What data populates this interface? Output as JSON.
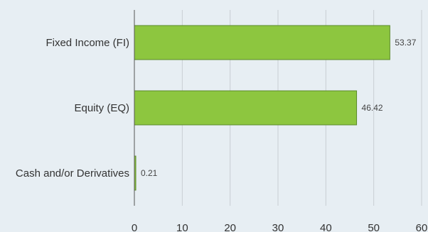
{
  "chart_data": {
    "type": "bar",
    "orientation": "horizontal",
    "categories": [
      "Fixed Income (FI)",
      "Equity (EQ)",
      "Cash and/or Derivatives"
    ],
    "values": [
      53.37,
      46.42,
      0.21
    ],
    "data_labels": [
      "53.37",
      "46.42",
      "0.21"
    ],
    "xlim": [
      0,
      60
    ],
    "x_ticks": [
      0,
      10,
      20,
      30,
      40,
      50,
      60
    ],
    "grid": "vertical",
    "legend": "none",
    "title": "",
    "xlabel": "",
    "ylabel": ""
  },
  "colors": {
    "background": "#e7eef3",
    "bar_fill": "#8dc63f",
    "bar_stroke": "#5a8a28",
    "grid": "#c8ced3",
    "axis": "#555555"
  }
}
